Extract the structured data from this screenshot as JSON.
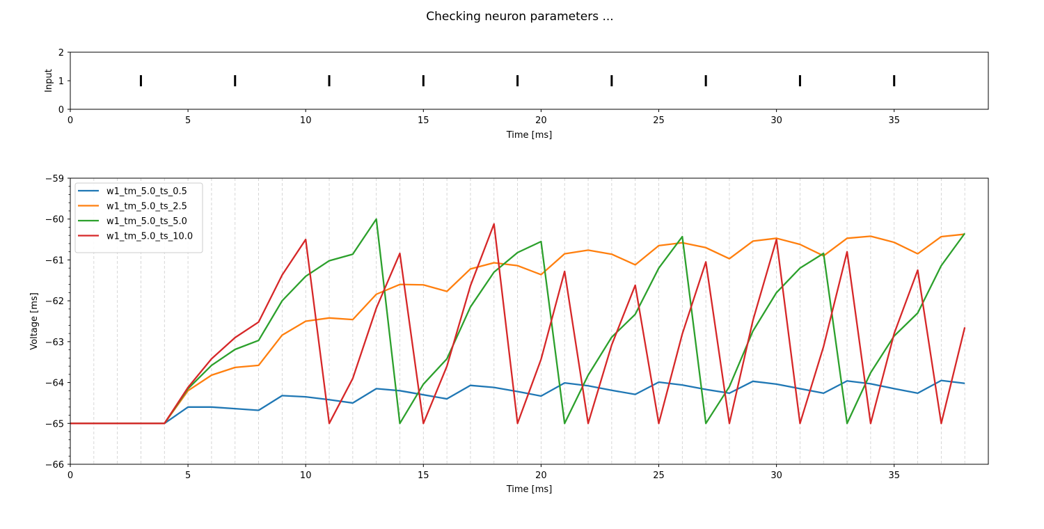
{
  "suptitle": "Checking neuron parameters ...",
  "chart_data": [
    {
      "type": "raster",
      "name": "input-spikes",
      "xlabel": "Time [ms]",
      "ylabel": "Input",
      "xlim": [
        0,
        39
      ],
      "ylim": [
        0,
        2
      ],
      "xticks": [
        0,
        5,
        10,
        15,
        20,
        25,
        30,
        35
      ],
      "yticks": [
        0,
        1,
        2
      ],
      "grid": false,
      "spike_level": 1,
      "spike_times": [
        3,
        7,
        11,
        15,
        19,
        23,
        27,
        31,
        35
      ],
      "color": "#000000"
    },
    {
      "type": "line",
      "name": "membrane-voltage",
      "xlabel": "Time [ms]",
      "ylabel": "Voltage [ms]",
      "xlim": [
        0,
        39
      ],
      "ylim": [
        -66,
        -59
      ],
      "xticks": [
        0,
        5,
        10,
        15,
        20,
        25,
        30,
        35
      ],
      "yticks": [
        -66,
        -65,
        -64,
        -63,
        -62,
        -61,
        -60,
        -59
      ],
      "grid": "vertical dashed every 1 ms",
      "legend": "top-left",
      "x": [
        0,
        1,
        2,
        3,
        4,
        5,
        6,
        7,
        8,
        9,
        10,
        11,
        12,
        13,
        14,
        15,
        16,
        17,
        18,
        19,
        20,
        21,
        22,
        23,
        24,
        25,
        26,
        27,
        28,
        29,
        30,
        31,
        32,
        33,
        34,
        35,
        36,
        37,
        38
      ],
      "series": [
        {
          "name": "w1_tm_5.0_ts_0.5",
          "color": "#1f77b4",
          "values": [
            -65,
            -65,
            -65,
            -65,
            -65,
            -64.6,
            -64.6,
            -64.64,
            -64.68,
            -64.32,
            -64.35,
            -64.42,
            -64.5,
            -64.15,
            -64.2,
            -64.3,
            -64.4,
            -64.07,
            -64.12,
            -64.22,
            -64.33,
            -64.01,
            -64.08,
            -64.19,
            -64.29,
            -63.99,
            -64.06,
            -64.17,
            -64.26,
            -63.97,
            -64.04,
            -64.15,
            -64.26,
            -63.96,
            -64.03,
            -64.15,
            -64.26,
            -63.95,
            -64.02
          ]
        },
        {
          "name": "w1_tm_5.0_ts_2.5",
          "color": "#ff7f0e",
          "values": [
            -65,
            -65,
            -65,
            -65,
            -65,
            -64.2,
            -63.82,
            -63.63,
            -63.58,
            -62.84,
            -62.5,
            -62.42,
            -62.46,
            -61.84,
            -61.6,
            -61.61,
            -61.77,
            -61.22,
            -61.07,
            -61.14,
            -61.36,
            -60.85,
            -60.76,
            -60.86,
            -61.12,
            -60.65,
            -60.58,
            -60.7,
            -60.97,
            -60.54,
            -60.47,
            -60.62,
            -60.9,
            -60.47,
            -60.42,
            -60.57,
            -60.85,
            -60.43,
            -60.37
          ]
        },
        {
          "name": "w1_tm_5.0_ts_5.0",
          "color": "#2ca02c",
          "values": [
            -65,
            -65,
            -65,
            -65,
            -65,
            -64.15,
            -63.58,
            -63.19,
            -62.97,
            -62.0,
            -61.4,
            -61.02,
            -60.86,
            -60.0,
            -65,
            -64.04,
            -63.42,
            -62.15,
            -61.3,
            -60.82,
            -60.55,
            -65,
            -63.82,
            -62.89,
            -62.33,
            -61.2,
            -60.43,
            -65,
            -64.1,
            -62.74,
            -61.8,
            -61.2,
            -60.84,
            -65,
            -63.76,
            -62.86,
            -62.3,
            -61.14,
            -60.35
          ]
        },
        {
          "name": "w1_tm_5.0_ts_10.0",
          "color": "#d62728",
          "values": [
            -65,
            -65,
            -65,
            -65,
            -65,
            -64.12,
            -63.42,
            -62.9,
            -62.52,
            -61.37,
            -60.5,
            -65,
            -63.9,
            -62.18,
            -60.84,
            -65,
            -63.6,
            -61.63,
            -60.12,
            -65,
            -63.43,
            -61.28,
            -65,
            -63.08,
            -61.62,
            -65,
            -62.81,
            -61.05,
            -65,
            -62.48,
            -60.5,
            -65,
            -63.12,
            -60.8,
            -65,
            -62.8,
            -61.25,
            -65,
            -62.65
          ]
        }
      ]
    }
  ]
}
